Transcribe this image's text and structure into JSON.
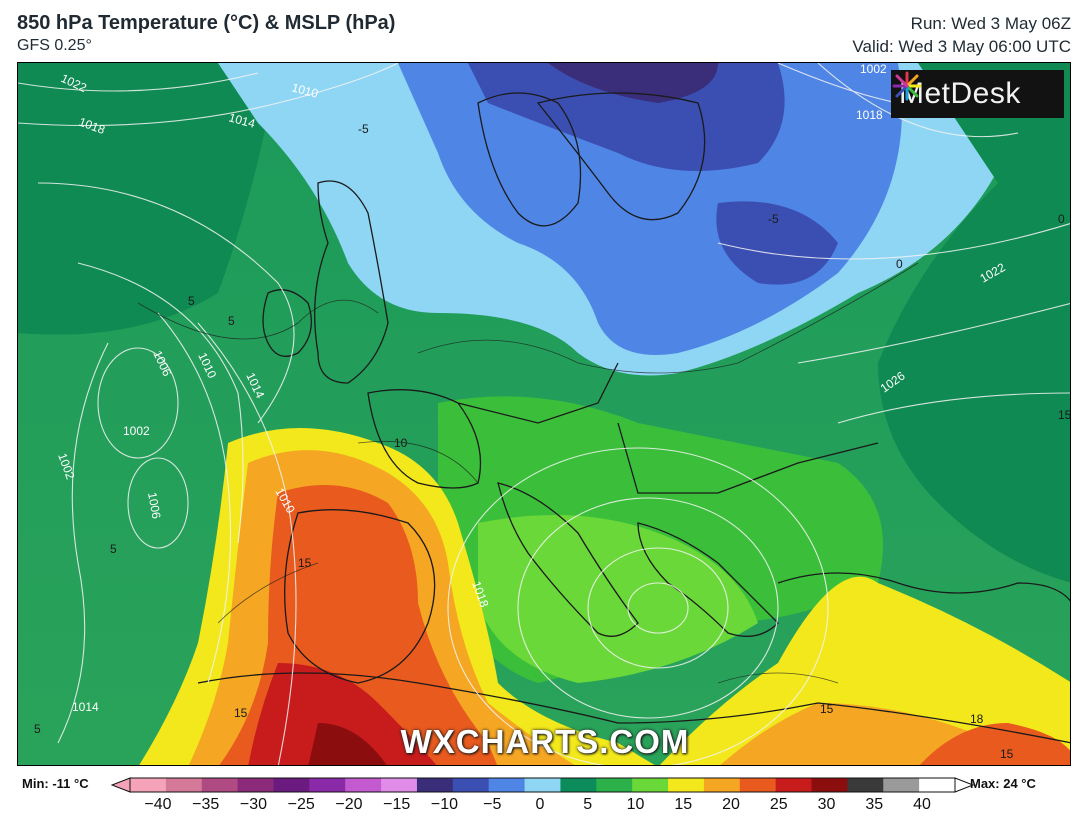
{
  "header": {
    "title": "850 hPa Temperature (°C) & MSLP (hPa)",
    "model": "GFS 0.25°",
    "run": "Run: Wed 3 May 06Z",
    "valid": "Valid: Wed 3 May 06:00 UTC"
  },
  "logo": {
    "text": "MetDesk"
  },
  "watermark": "WXCHARTS.COM",
  "legend": {
    "min_label": "Min: -11 °C",
    "max_label": "Max: 24 °C",
    "ticks": [
      "−40",
      "−35",
      "−30",
      "−25",
      "−20",
      "−15",
      "−10",
      "−5",
      "0",
      "5",
      "10",
      "15",
      "20",
      "25",
      "30",
      "35",
      "40"
    ],
    "colors": [
      "#f4a3b8",
      "#d47a98",
      "#b04a83",
      "#8a2a78",
      "#6b1b80",
      "#8a2aa8",
      "#c35ad0",
      "#e08ce8",
      "#3a2e7a",
      "#3b4fb2",
      "#4f86e6",
      "#8fd6f5",
      "#0b8c5a",
      "#2bb04a",
      "#6bd83a",
      "#f2e81c",
      "#f5a623",
      "#e85a1e",
      "#c81c1c",
      "#8b0d0d",
      "#3a3a3a",
      "#9a9a9a",
      "#ffffff"
    ]
  },
  "map": {
    "isobar_labels": [
      "1022",
      "1018",
      "1010",
      "1014",
      "1002",
      "1018",
      "1022",
      "1026",
      "1006",
      "1002",
      "1002",
      "1006",
      "1010",
      "1014",
      "1010",
      "1018",
      "1014"
    ],
    "temp_labels": [
      "-5",
      "-5",
      "0",
      "0",
      "5",
      "5",
      "10",
      "15",
      "15",
      "15",
      "15",
      "18",
      "5",
      "5",
      "15"
    ]
  }
}
